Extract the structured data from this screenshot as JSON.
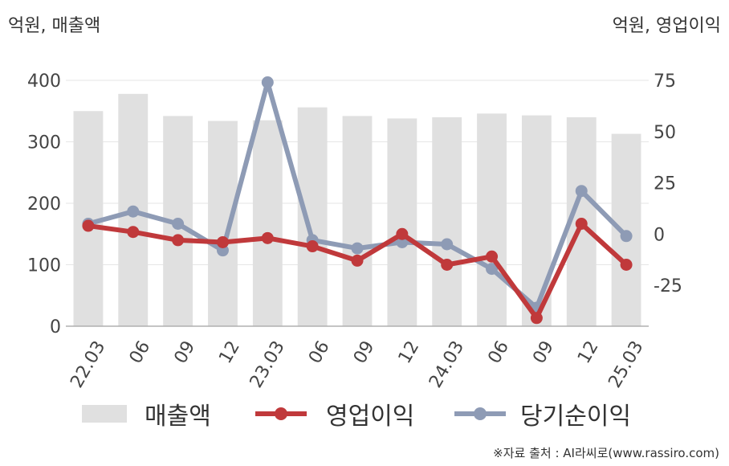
{
  "chart_data": {
    "type": "bar+line",
    "categories": [
      "22.03",
      "06",
      "09",
      "12",
      "23.03",
      "06",
      "09",
      "12",
      "24.03",
      "06",
      "09",
      "12",
      "25.03"
    ],
    "left_axis": {
      "label": "억원, 매출액",
      "ylim": [
        0,
        400
      ],
      "ticks": [
        "400",
        "300",
        "200",
        "100",
        "0"
      ],
      "tick_values": [
        400,
        300,
        200,
        100,
        0
      ]
    },
    "right_axis": {
      "label": "억원, 영업이익",
      "ylim": [
        -45,
        75
      ],
      "ticks": [
        "75",
        "50",
        "25",
        "0",
        "-25"
      ],
      "tick_values": [
        75,
        50,
        25,
        0,
        -25
      ]
    },
    "series": [
      {
        "name": "매출액",
        "type": "bar",
        "axis": "left",
        "color": "#e0e0e0",
        "values": [
          350,
          378,
          342,
          334,
          335,
          356,
          342,
          338,
          340,
          346,
          343,
          340,
          313
        ]
      },
      {
        "name": "영업이익",
        "type": "line",
        "axis": "right",
        "color": "#c0393b",
        "values": [
          4,
          1,
          -3,
          -4,
          -2,
          -6,
          -13,
          0,
          -15,
          -11,
          -41,
          5,
          -15
        ]
      },
      {
        "name": "당기순이익",
        "type": "line",
        "axis": "right",
        "color": "#8e9bb5",
        "values": [
          5,
          11,
          5,
          -8,
          74,
          -3,
          -7,
          -4,
          -5,
          -17,
          -36,
          21,
          -1
        ]
      }
    ],
    "grid": true,
    "legend": "bottom"
  },
  "legend": [
    "매출액",
    "영업이익",
    "당기순이익"
  ],
  "source": "※자료 출처 : AI라씨로(www.rassiro.com)"
}
